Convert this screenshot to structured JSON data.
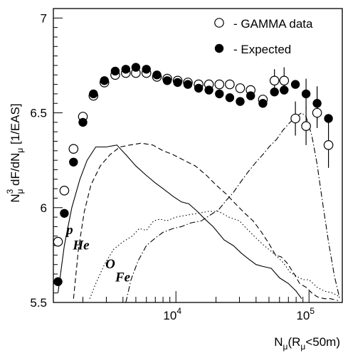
{
  "chart_data": {
    "type": "scatter",
    "x_scale": "log",
    "y_scale": "linear",
    "xlim": [
      1200,
      180000
    ],
    "ylim": [
      5.5,
      7.05
    ],
    "grid": false,
    "legend_position": "top-right",
    "x_tick_labels": [
      {
        "value": 10000,
        "base": "10",
        "exp": "4"
      },
      {
        "value": 100000,
        "base": "10",
        "exp": "5"
      }
    ],
    "y_tick_labels": [
      {
        "value": 5.5,
        "label": "5.5"
      },
      {
        "value": 6,
        "label": "6"
      },
      {
        "value": 6.5,
        "label": "6.5"
      },
      {
        "value": 7,
        "label": "7"
      }
    ],
    "xlabel": {
      "main": "N",
      "sub": "μ",
      "rest_open": "(R",
      "rest_sub": "μ",
      "rest_close": "<50m)"
    },
    "ylabel": {
      "p1": "N",
      "p1_sub": "μ",
      "p1_sup": "3",
      "p2": " dF/dN",
      "p2_sub": "μ",
      "p3": " [1/EAS]"
    },
    "legend": [
      {
        "label": "- GAMMA data",
        "marker": "open-circle"
      },
      {
        "label": "- Expected",
        "marker": "filled-circle"
      }
    ],
    "series": [
      {
        "name": "GAMMA data",
        "marker": "open-circle",
        "points": [
          {
            "x": 1300,
            "y": 5.82
          },
          {
            "x": 1450,
            "y": 6.09
          },
          {
            "x": 1700,
            "y": 6.31
          },
          {
            "x": 2000,
            "y": 6.48
          },
          {
            "x": 2400,
            "y": 6.59
          },
          {
            "x": 2900,
            "y": 6.66
          },
          {
            "x": 3500,
            "y": 6.7
          },
          {
            "x": 4200,
            "y": 6.71
          },
          {
            "x": 5000,
            "y": 6.71
          },
          {
            "x": 6000,
            "y": 6.71
          },
          {
            "x": 7200,
            "y": 6.69
          },
          {
            "x": 8600,
            "y": 6.68
          },
          {
            "x": 10300,
            "y": 6.67
          },
          {
            "x": 12300,
            "y": 6.66
          },
          {
            "x": 14800,
            "y": 6.65
          },
          {
            "x": 17700,
            "y": 6.65
          },
          {
            "x": 21200,
            "y": 6.65
          },
          {
            "x": 25400,
            "y": 6.65
          },
          {
            "x": 30400,
            "y": 6.63
          },
          {
            "x": 36400,
            "y": 6.62
          },
          {
            "x": 45000,
            "y": 6.57
          },
          {
            "x": 55000,
            "y": 6.67
          },
          {
            "x": 65000,
            "y": 6.67
          },
          {
            "x": 79000,
            "y": 6.47
          },
          {
            "x": 95000,
            "y": 6.43
          },
          {
            "x": 115000,
            "y": 6.5
          },
          {
            "x": 140000,
            "y": 6.33
          }
        ],
        "errors": [
          {
            "x": 55000,
            "lo": 6.61,
            "hi": 6.73
          },
          {
            "x": 65000,
            "lo": 6.6,
            "hi": 6.74
          },
          {
            "x": 79000,
            "lo": 6.38,
            "hi": 6.56
          },
          {
            "x": 95000,
            "lo": 6.33,
            "hi": 6.53
          },
          {
            "x": 115000,
            "lo": 6.42,
            "hi": 6.58
          },
          {
            "x": 140000,
            "lo": 6.21,
            "hi": 6.45
          }
        ]
      },
      {
        "name": "Expected",
        "marker": "filled-circle",
        "points": [
          {
            "x": 1300,
            "y": 5.61
          },
          {
            "x": 1450,
            "y": 5.97
          },
          {
            "x": 1700,
            "y": 6.24
          },
          {
            "x": 2000,
            "y": 6.45
          },
          {
            "x": 2400,
            "y": 6.6
          },
          {
            "x": 2900,
            "y": 6.67
          },
          {
            "x": 3500,
            "y": 6.72
          },
          {
            "x": 4200,
            "y": 6.73
          },
          {
            "x": 5000,
            "y": 6.74
          },
          {
            "x": 6000,
            "y": 6.73
          },
          {
            "x": 7200,
            "y": 6.7
          },
          {
            "x": 8600,
            "y": 6.67
          },
          {
            "x": 10300,
            "y": 6.66
          },
          {
            "x": 12300,
            "y": 6.65
          },
          {
            "x": 14800,
            "y": 6.63
          },
          {
            "x": 17700,
            "y": 6.62
          },
          {
            "x": 21200,
            "y": 6.6
          },
          {
            "x": 25400,
            "y": 6.58
          },
          {
            "x": 30400,
            "y": 6.56
          },
          {
            "x": 36400,
            "y": 6.59
          },
          {
            "x": 45000,
            "y": 6.55
          },
          {
            "x": 55000,
            "y": 6.61
          },
          {
            "x": 65000,
            "y": 6.62
          },
          {
            "x": 79000,
            "y": 6.65
          },
          {
            "x": 95000,
            "y": 6.6
          },
          {
            "x": 115000,
            "y": 6.55
          },
          {
            "x": 140000,
            "y": 6.47
          }
        ],
        "errors": [
          {
            "x": 95000,
            "lo": 6.52,
            "hi": 6.68
          },
          {
            "x": 115000,
            "lo": 6.46,
            "hi": 6.64
          }
        ]
      }
    ],
    "curves": [
      {
        "name": "p",
        "style": "solid",
        "points": [
          [
            1300,
            5.55
          ],
          [
            1450,
            5.8
          ],
          [
            1650,
            6.0
          ],
          [
            1900,
            6.15
          ],
          [
            2150,
            6.25
          ],
          [
            2500,
            6.32
          ],
          [
            3000,
            6.32
          ],
          [
            3600,
            6.33
          ],
          [
            4200,
            6.28
          ],
          [
            5000,
            6.22
          ],
          [
            6000,
            6.17
          ],
          [
            7000,
            6.13
          ],
          [
            8000,
            6.1
          ],
          [
            9500,
            6.06
          ],
          [
            11000,
            6.03
          ],
          [
            12500,
            6.02
          ],
          [
            14500,
            5.98
          ],
          [
            16500,
            5.94
          ],
          [
            19000,
            5.9
          ],
          [
            23000,
            5.83
          ],
          [
            27000,
            5.8
          ],
          [
            31000,
            5.76
          ],
          [
            35000,
            5.73
          ],
          [
            40000,
            5.7
          ],
          [
            45000,
            5.69
          ],
          [
            52000,
            5.68
          ],
          [
            60000,
            5.63
          ],
          [
            70000,
            5.6
          ],
          [
            80000,
            5.56
          ],
          [
            88000,
            5.52
          ]
        ]
      },
      {
        "name": "He",
        "style": "dashed",
        "points": [
          [
            1700,
            5.52
          ],
          [
            1850,
            5.78
          ],
          [
            2050,
            5.98
          ],
          [
            2300,
            6.12
          ],
          [
            2700,
            6.22
          ],
          [
            3200,
            6.28
          ],
          [
            3800,
            6.32
          ],
          [
            4500,
            6.33
          ],
          [
            5500,
            6.34
          ],
          [
            6700,
            6.33
          ],
          [
            8000,
            6.3
          ],
          [
            9500,
            6.28
          ],
          [
            11500,
            6.25
          ],
          [
            14000,
            6.22
          ],
          [
            17000,
            6.17
          ],
          [
            20000,
            6.12
          ],
          [
            24000,
            6.07
          ],
          [
            28000,
            6.02
          ],
          [
            33000,
            5.97
          ],
          [
            38000,
            5.93
          ],
          [
            44000,
            5.87
          ],
          [
            50000,
            5.81
          ],
          [
            56000,
            5.75
          ],
          [
            62000,
            5.74
          ],
          [
            68000,
            5.71
          ],
          [
            76000,
            5.66
          ],
          [
            85000,
            5.6
          ],
          [
            95000,
            5.58
          ],
          [
            105000,
            5.55
          ],
          [
            115000,
            5.53
          ],
          [
            130000,
            5.52
          ],
          [
            145000,
            5.52
          ],
          [
            165000,
            5.51
          ]
        ]
      },
      {
        "name": "O",
        "style": "dotted",
        "points": [
          [
            2250,
            5.52
          ],
          [
            2500,
            5.6
          ],
          [
            2900,
            5.7
          ],
          [
            3400,
            5.78
          ],
          [
            4000,
            5.82
          ],
          [
            4700,
            5.85
          ],
          [
            5300,
            5.89
          ],
          [
            6000,
            5.88
          ],
          [
            6800,
            5.93
          ],
          [
            7600,
            5.94
          ],
          [
            8500,
            5.93
          ],
          [
            10000,
            5.95
          ],
          [
            12000,
            5.96
          ],
          [
            14500,
            5.97
          ],
          [
            17500,
            5.98
          ],
          [
            21000,
            5.98
          ],
          [
            25000,
            5.95
          ],
          [
            30000,
            5.93
          ],
          [
            35000,
            5.88
          ],
          [
            40000,
            5.84
          ],
          [
            46000,
            5.8
          ],
          [
            52000,
            5.77
          ],
          [
            58000,
            5.74
          ],
          [
            64000,
            5.71
          ],
          [
            72000,
            5.66
          ],
          [
            80000,
            5.64
          ],
          [
            90000,
            5.62
          ],
          [
            100000,
            5.62
          ],
          [
            115000,
            5.58
          ],
          [
            130000,
            5.56
          ],
          [
            150000,
            5.55
          ],
          [
            170000,
            5.53
          ]
        ]
      },
      {
        "name": "Fe",
        "style": "dashdot",
        "points": [
          [
            4200,
            5.5
          ],
          [
            4600,
            5.62
          ],
          [
            5200,
            5.72
          ],
          [
            6000,
            5.8
          ],
          [
            7000,
            5.84
          ],
          [
            8000,
            5.87
          ],
          [
            9500,
            5.89
          ],
          [
            11000,
            5.9
          ],
          [
            13000,
            5.92
          ],
          [
            15500,
            5.93
          ],
          [
            18000,
            5.96
          ],
          [
            21000,
            5.99
          ],
          [
            24000,
            6.04
          ],
          [
            27000,
            6.08
          ],
          [
            31000,
            6.14
          ],
          [
            35000,
            6.19
          ],
          [
            40000,
            6.24
          ],
          [
            45000,
            6.28
          ],
          [
            50000,
            6.32
          ],
          [
            57000,
            6.36
          ],
          [
            64000,
            6.41
          ],
          [
            72000,
            6.45
          ],
          [
            80000,
            6.48
          ],
          [
            88000,
            6.5
          ],
          [
            95000,
            6.48
          ],
          [
            105000,
            6.38
          ],
          [
            115000,
            6.23
          ],
          [
            125000,
            6.05
          ],
          [
            140000,
            5.82
          ],
          [
            155000,
            5.64
          ],
          [
            170000,
            5.52
          ]
        ]
      }
    ],
    "curve_labels": [
      {
        "text": "p",
        "x": 1500,
        "y": 5.86
      },
      {
        "text": "He",
        "x": 1680,
        "y": 5.78
      },
      {
        "text": "O",
        "x": 2950,
        "y": 5.68
      },
      {
        "text": "Fe",
        "x": 3500,
        "y": 5.61
      }
    ]
  }
}
